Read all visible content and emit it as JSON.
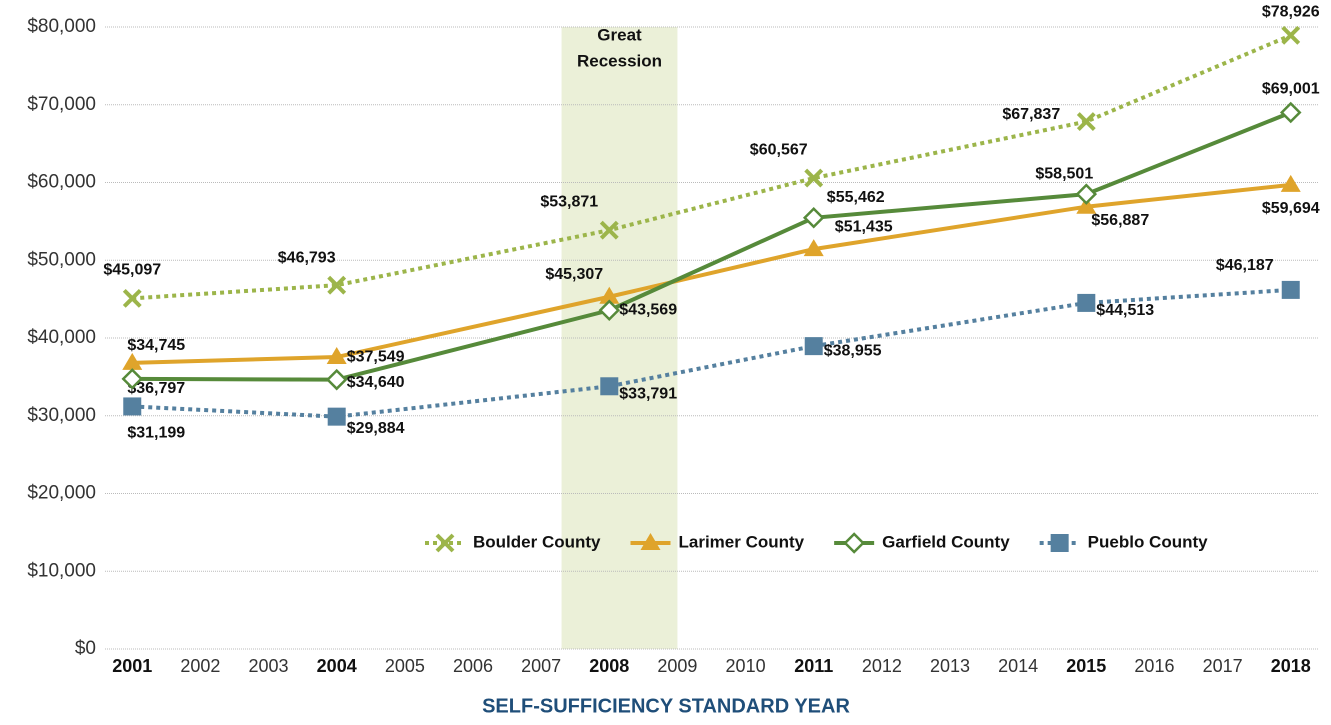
{
  "chart_data": {
    "type": "line",
    "x_label": "SELF-SUFFICIENCY STANDARD YEAR",
    "x": [
      2001,
      2004,
      2008,
      2011,
      2015,
      2018
    ],
    "xlim": [
      2000.6,
      2018.4
    ],
    "xticks": [
      2001,
      2002,
      2003,
      2004,
      2005,
      2006,
      2007,
      2008,
      2009,
      2010,
      2011,
      2012,
      2013,
      2014,
      2015,
      2016,
      2017,
      2018
    ],
    "ylim": [
      0,
      80000
    ],
    "yticks": [
      {
        "value": 0,
        "label": "$0"
      },
      {
        "value": 10000,
        "label": "$10,000"
      },
      {
        "value": 20000,
        "label": "$20,000"
      },
      {
        "value": 30000,
        "label": "$30,000"
      },
      {
        "value": 40000,
        "label": "$40,000"
      },
      {
        "value": 50000,
        "label": "$50,000"
      },
      {
        "value": 60000,
        "label": "$60,000"
      },
      {
        "value": 70000,
        "label": "$70,000"
      },
      {
        "value": 80000,
        "label": "$80,000"
      }
    ],
    "grid": true,
    "legend": "lower right",
    "annotation": {
      "lines": [
        "Great",
        "Recession"
      ],
      "x_range": [
        2007.3,
        2009.0
      ],
      "color": "#ebf0d8"
    },
    "series": [
      {
        "name": "Boulder County",
        "color": "#9cb54a",
        "style": "dotted",
        "marker": "x",
        "values": [
          45097,
          46793,
          53871,
          60567,
          67837,
          78926
        ],
        "value_labels": [
          "$45,097",
          "$46,793",
          "$53,871",
          "$60,567",
          "$67,837",
          "$78,926"
        ]
      },
      {
        "name": "Larimer County",
        "color": "#dfa42b",
        "style": "solid",
        "marker": "triangle",
        "values": [
          36797,
          37549,
          45307,
          51435,
          56887,
          59694
        ],
        "value_labels": [
          "$36,797",
          "$37,549",
          "$45,307",
          "$51,435",
          "$56,887",
          "$59,694"
        ]
      },
      {
        "name": "Garfield County",
        "color": "#568a3a",
        "style": "solid",
        "marker": "diamond",
        "values": [
          34745,
          34640,
          43569,
          55462,
          58501,
          69001
        ],
        "value_labels": [
          "$34,745",
          "$34,640",
          "$43,569",
          "$55,462",
          "$58,501",
          "$69,001"
        ]
      },
      {
        "name": "Pueblo County",
        "color": "#55809f",
        "style": "dotted",
        "marker": "square",
        "values": [
          31199,
          29884,
          33791,
          38955,
          44513,
          46187
        ],
        "value_labels": [
          "$31,199",
          "$29,884",
          "$33,791",
          "$38,955",
          "$44,513",
          "$46,187"
        ]
      }
    ]
  }
}
